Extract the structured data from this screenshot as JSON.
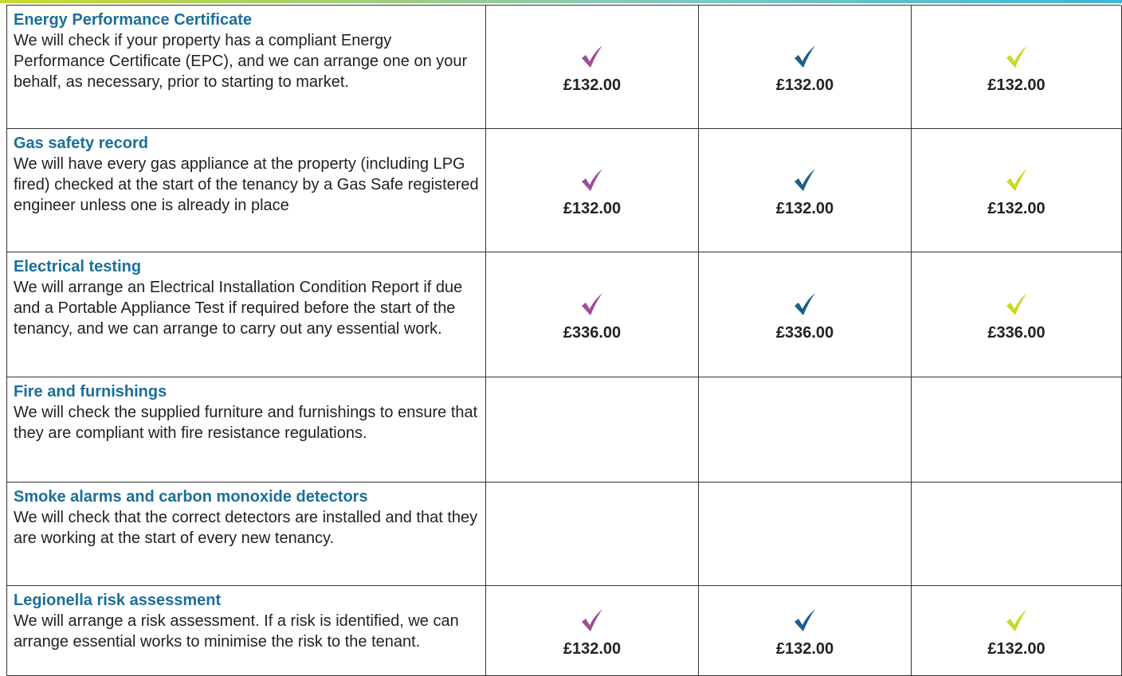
{
  "table": {
    "rows": [
      {
        "title": "Energy Performance Certificate",
        "description": "We will check if your property has a compliant Energy Performance Certificate (EPC), and we can arrange one on your behalf, as necessary, prior to starting to market.",
        "prices": [
          "£132.00",
          "£132.00",
          "£132.00"
        ]
      },
      {
        "title": "Gas safety record",
        "description": "We will have every gas appliance at the property (including LPG fired) checked at the start of the tenancy by a Gas Safe registered engineer unless one is already in place",
        "prices": [
          "£132.00",
          "£132.00",
          "£132.00"
        ]
      },
      {
        "title": "Electrical testing",
        "description": "We will arrange an Electrical Installation Condition Report if due and a Portable Appliance Test if required before the start of the tenancy, and we can arrange to carry out any essential work.",
        "prices": [
          "£336.00",
          "£336.00",
          "£336.00"
        ]
      },
      {
        "title": "Fire and furnishings",
        "description": "We will check the supplied furniture and furnishings to ensure that they are compliant with fire resistance regulations."
      },
      {
        "title": "Smoke alarms and carbon monoxide detectors",
        "description": "We will check that the correct detectors are installed and that they are working at the start of every new tenancy."
      },
      {
        "title": "Legionella risk assessment",
        "description": "We will arrange a risk assessment. If a risk is identified, we can arrange essential works to minimise the risk to the tenant.",
        "prices": [
          "£132.00",
          "£132.00",
          "£132.00"
        ]
      }
    ]
  }
}
